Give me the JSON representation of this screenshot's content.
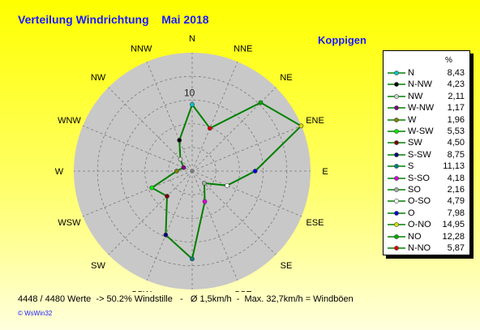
{
  "title": "Verteilung Windrichtung    Mai 2018",
  "station": "Koppigen",
  "legend_unit": "%",
  "footer": "4448 / 4480 Werte  -> 50.2% Windstille   -   Ø 1,5km/h  -  Max. 32,7km/h = Windböen",
  "copyright": "© WsWin32",
  "chart_data": {
    "type": "radar",
    "unit": "%",
    "rmax": 15,
    "ring_label": "10",
    "ring_label_value": 10,
    "rings": [
      3,
      6,
      9,
      12,
      15
    ],
    "grid": true,
    "axis_labels": [
      "N",
      "NNE",
      "NE",
      "ENE",
      "E",
      "ESE",
      "SE",
      "SSE",
      "S",
      "SSW",
      "SW",
      "WSW",
      "W",
      "WNW",
      "NW",
      "NNW"
    ],
    "directions": [
      {
        "name": "N",
        "label": "N",
        "value": 8.43,
        "color": "#00c8c8",
        "deg": 0
      },
      {
        "name": "NNE",
        "label": "N-NO",
        "value": 5.87,
        "color": "#dd0000",
        "deg": 22.5
      },
      {
        "name": "NE",
        "label": "NO",
        "value": 12.28,
        "color": "#00aa00",
        "deg": 45
      },
      {
        "name": "ENE",
        "label": "O-NO",
        "value": 14.95,
        "color": "#dddd00",
        "deg": 67.5
      },
      {
        "name": "E",
        "label": "O",
        "value": 7.98,
        "color": "#0000dd",
        "deg": 90
      },
      {
        "name": "ESE",
        "label": "O-SO",
        "value": 4.79,
        "color": "#ffffff",
        "deg": 112.5
      },
      {
        "name": "SE",
        "label": "SO",
        "value": 2.16,
        "color": "#aaaaaa",
        "deg": 135
      },
      {
        "name": "SSE",
        "label": "S-SO",
        "value": 4.18,
        "color": "#dd00dd",
        "deg": 157.5
      },
      {
        "name": "S",
        "label": "S",
        "value": 11.13,
        "color": "#008080",
        "deg": 180
      },
      {
        "name": "SSW",
        "label": "S-SW",
        "value": 8.75,
        "color": "#000080",
        "deg": 202.5
      },
      {
        "name": "SW",
        "label": "SW",
        "value": 4.5,
        "color": "#800000",
        "deg": 225
      },
      {
        "name": "WSW",
        "label": "W-SW",
        "value": 5.53,
        "color": "#00ee00",
        "deg": 247.5
      },
      {
        "name": "W",
        "label": "W",
        "value": 1.96,
        "color": "#808000",
        "deg": 270
      },
      {
        "name": "WNW",
        "label": "W-NW",
        "value": 1.17,
        "color": "#800080",
        "deg": 292.5
      },
      {
        "name": "NW",
        "label": "NW",
        "value": 2.11,
        "color": "#d0d0d0",
        "deg": 315
      },
      {
        "name": "NNW",
        "label": "N-NW",
        "value": 4.23,
        "color": "#000000",
        "deg": 337.5
      }
    ],
    "legend_order": [
      "N",
      "N-NW",
      "NW",
      "W-NW",
      "W",
      "W-SW",
      "SW",
      "S-SW",
      "S",
      "S-SO",
      "SO",
      "O-SO",
      "O",
      "O-NO",
      "NO",
      "N-NO"
    ],
    "line_color": "#008000",
    "legend_position": "right"
  }
}
